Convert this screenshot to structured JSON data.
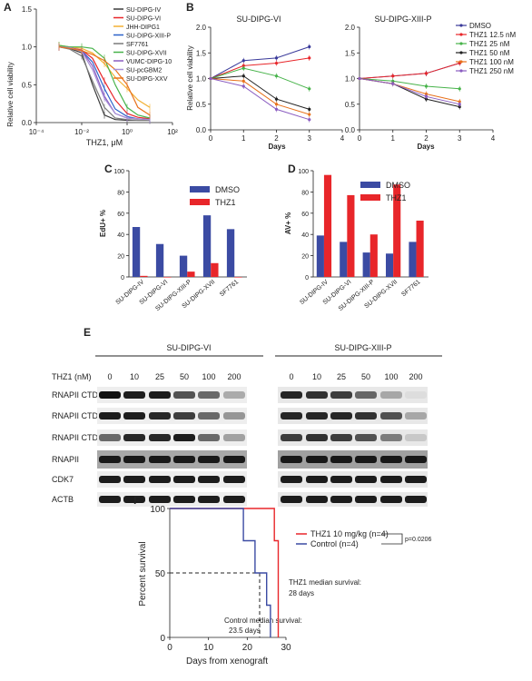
{
  "panels": {
    "A": {
      "letter": "A",
      "xlabel": "THZ1, μM",
      "ylabel": "Relative cell viability",
      "xticks": [
        "10⁻⁴",
        "10⁻²",
        "10⁰",
        "10²"
      ],
      "yticks": [
        "0.0",
        "0.5",
        "1.0",
        "1.5"
      ],
      "legend": [
        {
          "name": "SU-DIPG-IV",
          "color": "#3a3a3a"
        },
        {
          "name": "SU-DIPG-VI",
          "color": "#e8262a"
        },
        {
          "name": "JHH-DIPG1",
          "color": "#f2b134"
        },
        {
          "name": "SU-DIPG-XIII-P",
          "color": "#2c62c9"
        },
        {
          "name": "SF7761",
          "color": "#7b7b7b"
        },
        {
          "name": "SU-DIPG-XVII",
          "color": "#47b34a"
        },
        {
          "name": "VUMC-DIPG-10",
          "color": "#8a5cc0"
        },
        {
          "name": "SU-pcGBM2",
          "color": "#a890d6"
        },
        {
          "name": "SU-DIPG-XXV",
          "color": "#e8721c"
        }
      ]
    },
    "B": {
      "letter": "B",
      "ylabel": "Relative cell viability",
      "xlabel": "Days",
      "left_title": "SU-DIPG-VI",
      "right_title": "SU-DIPG-XIII-P",
      "xticks": [
        "0",
        "1",
        "2",
        "3",
        "4"
      ],
      "yticks": [
        "0.0",
        "0.5",
        "1.0",
        "1.5",
        "2.0"
      ],
      "legend": [
        {
          "name": "DMSO",
          "color": "#3a3a9a"
        },
        {
          "name": "THZ1 12.5 nM",
          "color": "#e8262a"
        },
        {
          "name": "THZ1 25 nM",
          "color": "#47b34a"
        },
        {
          "name": "THZ1 50 nM",
          "color": "#222222"
        },
        {
          "name": "THZ1 100 nM",
          "color": "#e8721c"
        },
        {
          "name": "THZ1 250 nM",
          "color": "#8a5cc0"
        }
      ]
    },
    "C": {
      "letter": "C",
      "ylabel": "EdU+ %",
      "yticks": [
        "0",
        "20",
        "40",
        "60",
        "80",
        "100"
      ],
      "legend": [
        {
          "name": "DMSO",
          "color": "#3b4ba3"
        },
        {
          "name": "THZ1",
          "color": "#e8262a"
        }
      ]
    },
    "D": {
      "letter": "D",
      "ylabel": "AV+ %",
      "yticks": [
        "0",
        "20",
        "40",
        "60",
        "80",
        "100"
      ],
      "legend": [
        {
          "name": "DMSO",
          "color": "#3b4ba3"
        },
        {
          "name": "THZ1",
          "color": "#e8262a"
        }
      ]
    },
    "E": {
      "letter": "E",
      "left_title": "SU-DIPG-VI",
      "right_title": "SU-DIPG-XIII-P",
      "dose_label": "THZ1 (nM)",
      "doses": [
        "0",
        "10",
        "25",
        "50",
        "100",
        "200"
      ],
      "rows": [
        "RNAPII CTD pSer2",
        "RNAPII CTD pSer5",
        "RNAPII CTD pSer7",
        "RNAPII",
        "CDK7",
        "ACTB"
      ]
    },
    "F": {
      "letter": "F",
      "ylabel": "Percent survival",
      "xlabel": "Days from xenograft",
      "xticks": [
        "0",
        "10",
        "20",
        "30"
      ],
      "yticks": [
        "0",
        "50",
        "100"
      ],
      "legend": [
        {
          "name": "THZ1 10 mg/kg (n=4)",
          "color": "#e8262a"
        },
        {
          "name": "Control (n=4)",
          "color": "#3b4ba3"
        }
      ],
      "pvalue": "p=0.0206",
      "control_note": [
        "Control median survival:",
        "23.5 days"
      ],
      "thz1_note": [
        "THZ1 median survival:",
        "28 days"
      ]
    }
  },
  "chart_data": [
    {
      "panel": "A",
      "type": "line",
      "xscale": "log",
      "xlim": [
        0.0001,
        100
      ],
      "ylim": [
        0,
        1.5
      ],
      "x": [
        0.001,
        0.003,
        0.01,
        0.03,
        0.1,
        0.3,
        1,
        3,
        10
      ],
      "series": [
        {
          "name": "SU-DIPG-IV",
          "values": [
            1.0,
            0.98,
            0.92,
            0.5,
            0.1,
            0.04,
            0.03,
            0.03,
            0.03
          ]
        },
        {
          "name": "SU-DIPG-VI",
          "values": [
            1.0,
            0.99,
            0.96,
            0.85,
            0.55,
            0.3,
            0.12,
            0.07,
            0.05
          ]
        },
        {
          "name": "JHH-DIPG1",
          "values": [
            1.02,
            1.0,
            0.98,
            0.92,
            0.78,
            0.6,
            0.45,
            0.3,
            0.2
          ]
        },
        {
          "name": "SU-DIPG-XIII-P",
          "values": [
            1.0,
            0.98,
            0.95,
            0.8,
            0.45,
            0.18,
            0.08,
            0.05,
            0.04
          ]
        },
        {
          "name": "SF7761",
          "values": [
            1.0,
            0.97,
            0.88,
            0.55,
            0.2,
            0.06,
            0.04,
            0.03,
            0.03
          ]
        },
        {
          "name": "SU-DIPG-XVII",
          "values": [
            1.02,
            1.0,
            1.0,
            0.98,
            0.85,
            0.5,
            0.2,
            0.1,
            0.06
          ]
        },
        {
          "name": "VUMC-DIPG-10",
          "values": [
            1.0,
            0.99,
            0.95,
            0.75,
            0.35,
            0.12,
            0.06,
            0.05,
            0.04
          ]
        },
        {
          "name": "SU-pcGBM2",
          "values": [
            1.0,
            0.99,
            0.94,
            0.7,
            0.32,
            0.12,
            0.06,
            0.05,
            0.04
          ]
        },
        {
          "name": "SU-DIPG-XXV",
          "values": [
            1.0,
            0.98,
            0.95,
            0.9,
            0.82,
            0.7,
            0.5,
            0.2,
            0.1
          ]
        }
      ]
    },
    {
      "panel": "B-left",
      "type": "line",
      "x": [
        0,
        1,
        2,
        3
      ],
      "xlim": [
        0,
        4
      ],
      "ylim": [
        0,
        2
      ],
      "series": [
        {
          "name": "DMSO",
          "values": [
            1.0,
            1.35,
            1.4,
            1.62
          ]
        },
        {
          "name": "THZ1 12.5 nM",
          "values": [
            1.0,
            1.25,
            1.3,
            1.4
          ]
        },
        {
          "name": "THZ1 25 nM",
          "values": [
            1.0,
            1.2,
            1.05,
            0.8
          ]
        },
        {
          "name": "THZ1 50 nM",
          "values": [
            1.0,
            1.05,
            0.6,
            0.4
          ]
        },
        {
          "name": "THZ1 100 nM",
          "values": [
            1.0,
            0.95,
            0.5,
            0.3
          ]
        },
        {
          "name": "THZ1 250 nM",
          "values": [
            1.0,
            0.85,
            0.4,
            0.2
          ]
        }
      ]
    },
    {
      "panel": "B-right",
      "type": "line",
      "x": [
        0,
        1,
        2,
        3
      ],
      "xlim": [
        0,
        4
      ],
      "ylim": [
        0,
        2
      ],
      "series": [
        {
          "name": "DMSO",
          "values": [
            1.0,
            1.05,
            1.1,
            1.3
          ]
        },
        {
          "name": "THZ1 12.5 nM",
          "values": [
            1.0,
            1.05,
            1.1,
            1.3
          ]
        },
        {
          "name": "THZ1 25 nM",
          "values": [
            1.0,
            0.95,
            0.85,
            0.8
          ]
        },
        {
          "name": "THZ1 50 nM",
          "values": [
            1.0,
            0.9,
            0.6,
            0.45
          ]
        },
        {
          "name": "THZ1 100 nM",
          "values": [
            1.0,
            0.9,
            0.7,
            0.55
          ]
        },
        {
          "name": "THZ1 250 nM",
          "values": [
            1.0,
            0.9,
            0.65,
            0.5
          ]
        }
      ]
    },
    {
      "panel": "C",
      "type": "bar",
      "categories": [
        "SU-DIPG-IV",
        "SU-DIPG-VI",
        "SU-DIPG-XIII-P",
        "SU-DIPG-XVII",
        "SF7761"
      ],
      "ylim": [
        0,
        100
      ],
      "series": [
        {
          "name": "DMSO",
          "values": [
            47,
            31,
            20,
            58,
            45
          ]
        },
        {
          "name": "THZ1",
          "values": [
            1,
            0,
            5,
            13,
            0
          ]
        }
      ]
    },
    {
      "panel": "D",
      "type": "bar",
      "categories": [
        "SU-DIPG-IV",
        "SU-DIPG-VI",
        "SU-DIPG-XIII-P",
        "SU-DIPG-XVII",
        "SF7761"
      ],
      "ylim": [
        0,
        100
      ],
      "series": [
        {
          "name": "DMSO",
          "values": [
            39,
            33,
            23,
            22,
            33
          ]
        },
        {
          "name": "THZ1",
          "values": [
            96,
            77,
            40,
            87,
            53
          ]
        }
      ]
    },
    {
      "panel": "F",
      "type": "line",
      "step": true,
      "xlim": [
        0,
        30
      ],
      "ylim": [
        0,
        100
      ],
      "series": [
        {
          "name": "THZ1 10 mg/kg (n=4)",
          "x": [
            0,
            27,
            27,
            28,
            28
          ],
          "values": [
            100,
            100,
            75,
            75,
            0
          ]
        },
        {
          "name": "Control (n=4)",
          "x": [
            0,
            19,
            19,
            22,
            22,
            25,
            25,
            26,
            26
          ],
          "values": [
            100,
            100,
            75,
            75,
            50,
            50,
            25,
            25,
            0
          ]
        }
      ]
    }
  ]
}
